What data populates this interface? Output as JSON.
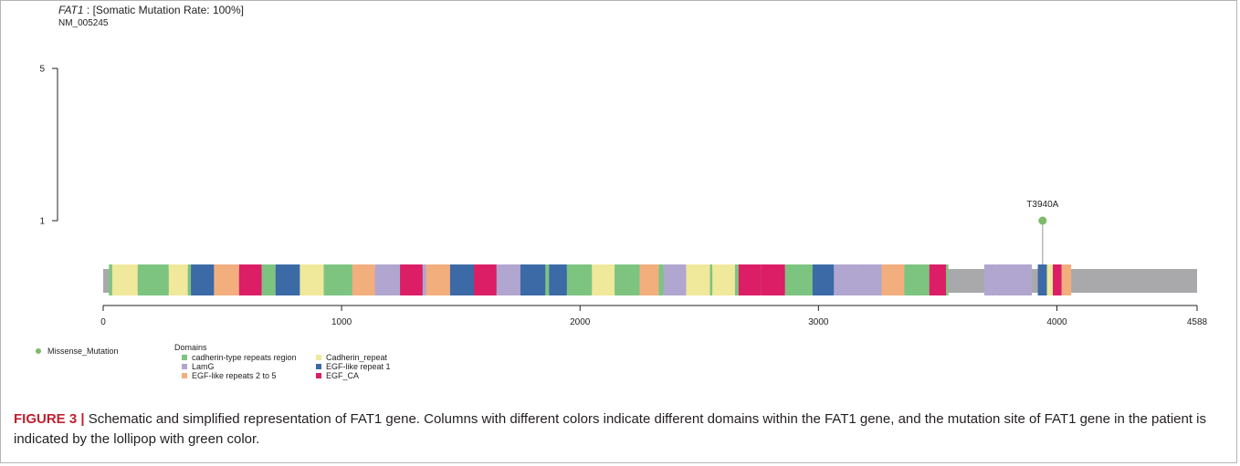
{
  "header": {
    "gene": "FAT1",
    "rate_text": " : [Somatic Mutation Rate: 100%]",
    "transcript": "NM_005245"
  },
  "chart_data": {
    "type": "lollipop",
    "protein_length": 4588,
    "x_ticks": [
      0,
      1000,
      2000,
      3000,
      4000,
      4588
    ],
    "y_axis": {
      "ticks": [
        1,
        5
      ],
      "range": [
        1,
        5
      ]
    },
    "backbone_color": "#a9a9ab",
    "mutations": [
      {
        "position": 3940,
        "label": "T3940A",
        "count": 1,
        "type": "Missense_Mutation",
        "color": "#7dbb6a"
      }
    ],
    "domain_types": [
      {
        "name": "cadherin-type repeats region",
        "color": "#7dc480"
      },
      {
        "name": "Cadherin_repeat",
        "color": "#f0e89a"
      },
      {
        "name": "LamG",
        "color": "#b0a6cf"
      },
      {
        "name": "EGF-like repeat 1",
        "color": "#3b6aa6"
      },
      {
        "name": "EGF-like repeats 2 to 5",
        "color": "#f3ae7e"
      },
      {
        "name": "EGF_CA",
        "color": "#db1e66"
      }
    ],
    "domain_segments": [
      {
        "start": 24,
        "end": 38,
        "domain": "cadherin-type repeats region"
      },
      {
        "start": 38,
        "end": 145,
        "domain": "Cadherin_repeat"
      },
      {
        "start": 145,
        "end": 275,
        "domain": "cadherin-type repeats region"
      },
      {
        "start": 275,
        "end": 355,
        "domain": "Cadherin_repeat"
      },
      {
        "start": 355,
        "end": 368,
        "domain": "cadherin-type repeats region"
      },
      {
        "start": 368,
        "end": 465,
        "domain": "EGF-like repeat 1"
      },
      {
        "start": 465,
        "end": 570,
        "domain": "EGF-like repeats 2 to 5"
      },
      {
        "start": 570,
        "end": 665,
        "domain": "EGF_CA"
      },
      {
        "start": 665,
        "end": 723,
        "domain": "cadherin-type repeats region"
      },
      {
        "start": 723,
        "end": 825,
        "domain": "EGF-like repeat 1"
      },
      {
        "start": 825,
        "end": 925,
        "domain": "Cadherin_repeat"
      },
      {
        "start": 925,
        "end": 1045,
        "domain": "cadherin-type repeats region"
      },
      {
        "start": 1045,
        "end": 1140,
        "domain": "EGF-like repeats 2 to 5"
      },
      {
        "start": 1140,
        "end": 1245,
        "domain": "LamG"
      },
      {
        "start": 1245,
        "end": 1340,
        "domain": "EGF_CA"
      },
      {
        "start": 1340,
        "end": 1355,
        "domain": "LamG"
      },
      {
        "start": 1355,
        "end": 1455,
        "domain": "EGF-like repeats 2 to 5"
      },
      {
        "start": 1455,
        "end": 1555,
        "domain": "EGF-like repeat 1"
      },
      {
        "start": 1555,
        "end": 1650,
        "domain": "EGF_CA"
      },
      {
        "start": 1650,
        "end": 1750,
        "domain": "LamG"
      },
      {
        "start": 1750,
        "end": 1855,
        "domain": "EGF-like repeat 1"
      },
      {
        "start": 1855,
        "end": 1870,
        "domain": "cadherin-type repeats region"
      },
      {
        "start": 1870,
        "end": 1945,
        "domain": "EGF-like repeat 1"
      },
      {
        "start": 1945,
        "end": 2050,
        "domain": "cadherin-type repeats region"
      },
      {
        "start": 2050,
        "end": 2145,
        "domain": "Cadherin_repeat"
      },
      {
        "start": 2145,
        "end": 2250,
        "domain": "cadherin-type repeats region"
      },
      {
        "start": 2250,
        "end": 2330,
        "domain": "EGF-like repeats 2 to 5"
      },
      {
        "start": 2330,
        "end": 2350,
        "domain": "cadherin-type repeats region"
      },
      {
        "start": 2350,
        "end": 2445,
        "domain": "LamG"
      },
      {
        "start": 2445,
        "end": 2545,
        "domain": "Cadherin_repeat"
      },
      {
        "start": 2545,
        "end": 2555,
        "domain": "cadherin-type repeats region"
      },
      {
        "start": 2555,
        "end": 2650,
        "domain": "Cadherin_repeat"
      },
      {
        "start": 2650,
        "end": 2665,
        "domain": "cadherin-type repeats region"
      },
      {
        "start": 2665,
        "end": 2760,
        "domain": "EGF_CA"
      },
      {
        "start": 2760,
        "end": 2860,
        "domain": "EGF_CA"
      },
      {
        "start": 2860,
        "end": 2975,
        "domain": "cadherin-type repeats region"
      },
      {
        "start": 2975,
        "end": 3065,
        "domain": "EGF-like repeat 1"
      },
      {
        "start": 3065,
        "end": 3165,
        "domain": "LamG"
      },
      {
        "start": 3165,
        "end": 3265,
        "domain": "LamG"
      },
      {
        "start": 3265,
        "end": 3360,
        "domain": "EGF-like repeats 2 to 5"
      },
      {
        "start": 3360,
        "end": 3465,
        "domain": "cadherin-type repeats region"
      },
      {
        "start": 3465,
        "end": 3535,
        "domain": "EGF_CA"
      },
      {
        "start": 3535,
        "end": 3545,
        "domain": "cadherin-type repeats region"
      },
      {
        "start": 3695,
        "end": 3745,
        "domain": "LamG"
      },
      {
        "start": 3745,
        "end": 3895,
        "domain": "LamG"
      },
      {
        "start": 3920,
        "end": 3958,
        "domain": "EGF-like repeat 1"
      },
      {
        "start": 3958,
        "end": 3983,
        "domain": "Cadherin_repeat"
      },
      {
        "start": 3983,
        "end": 4020,
        "domain": "EGF_CA"
      },
      {
        "start": 4020,
        "end": 4060,
        "domain": "EGF-like repeats 2 to 5"
      }
    ],
    "legend": {
      "mutation_label": "Missense_Mutation",
      "domains_title": "Domains"
    }
  },
  "caption": {
    "label": "FIGURE 3 |",
    "text": " Schematic and simplified representation of FAT1 gene. Columns with different colors indicate different domains within the FAT1 gene, and the mutation site of FAT1 gene in the patient is indicated by the lollipop with green color."
  }
}
